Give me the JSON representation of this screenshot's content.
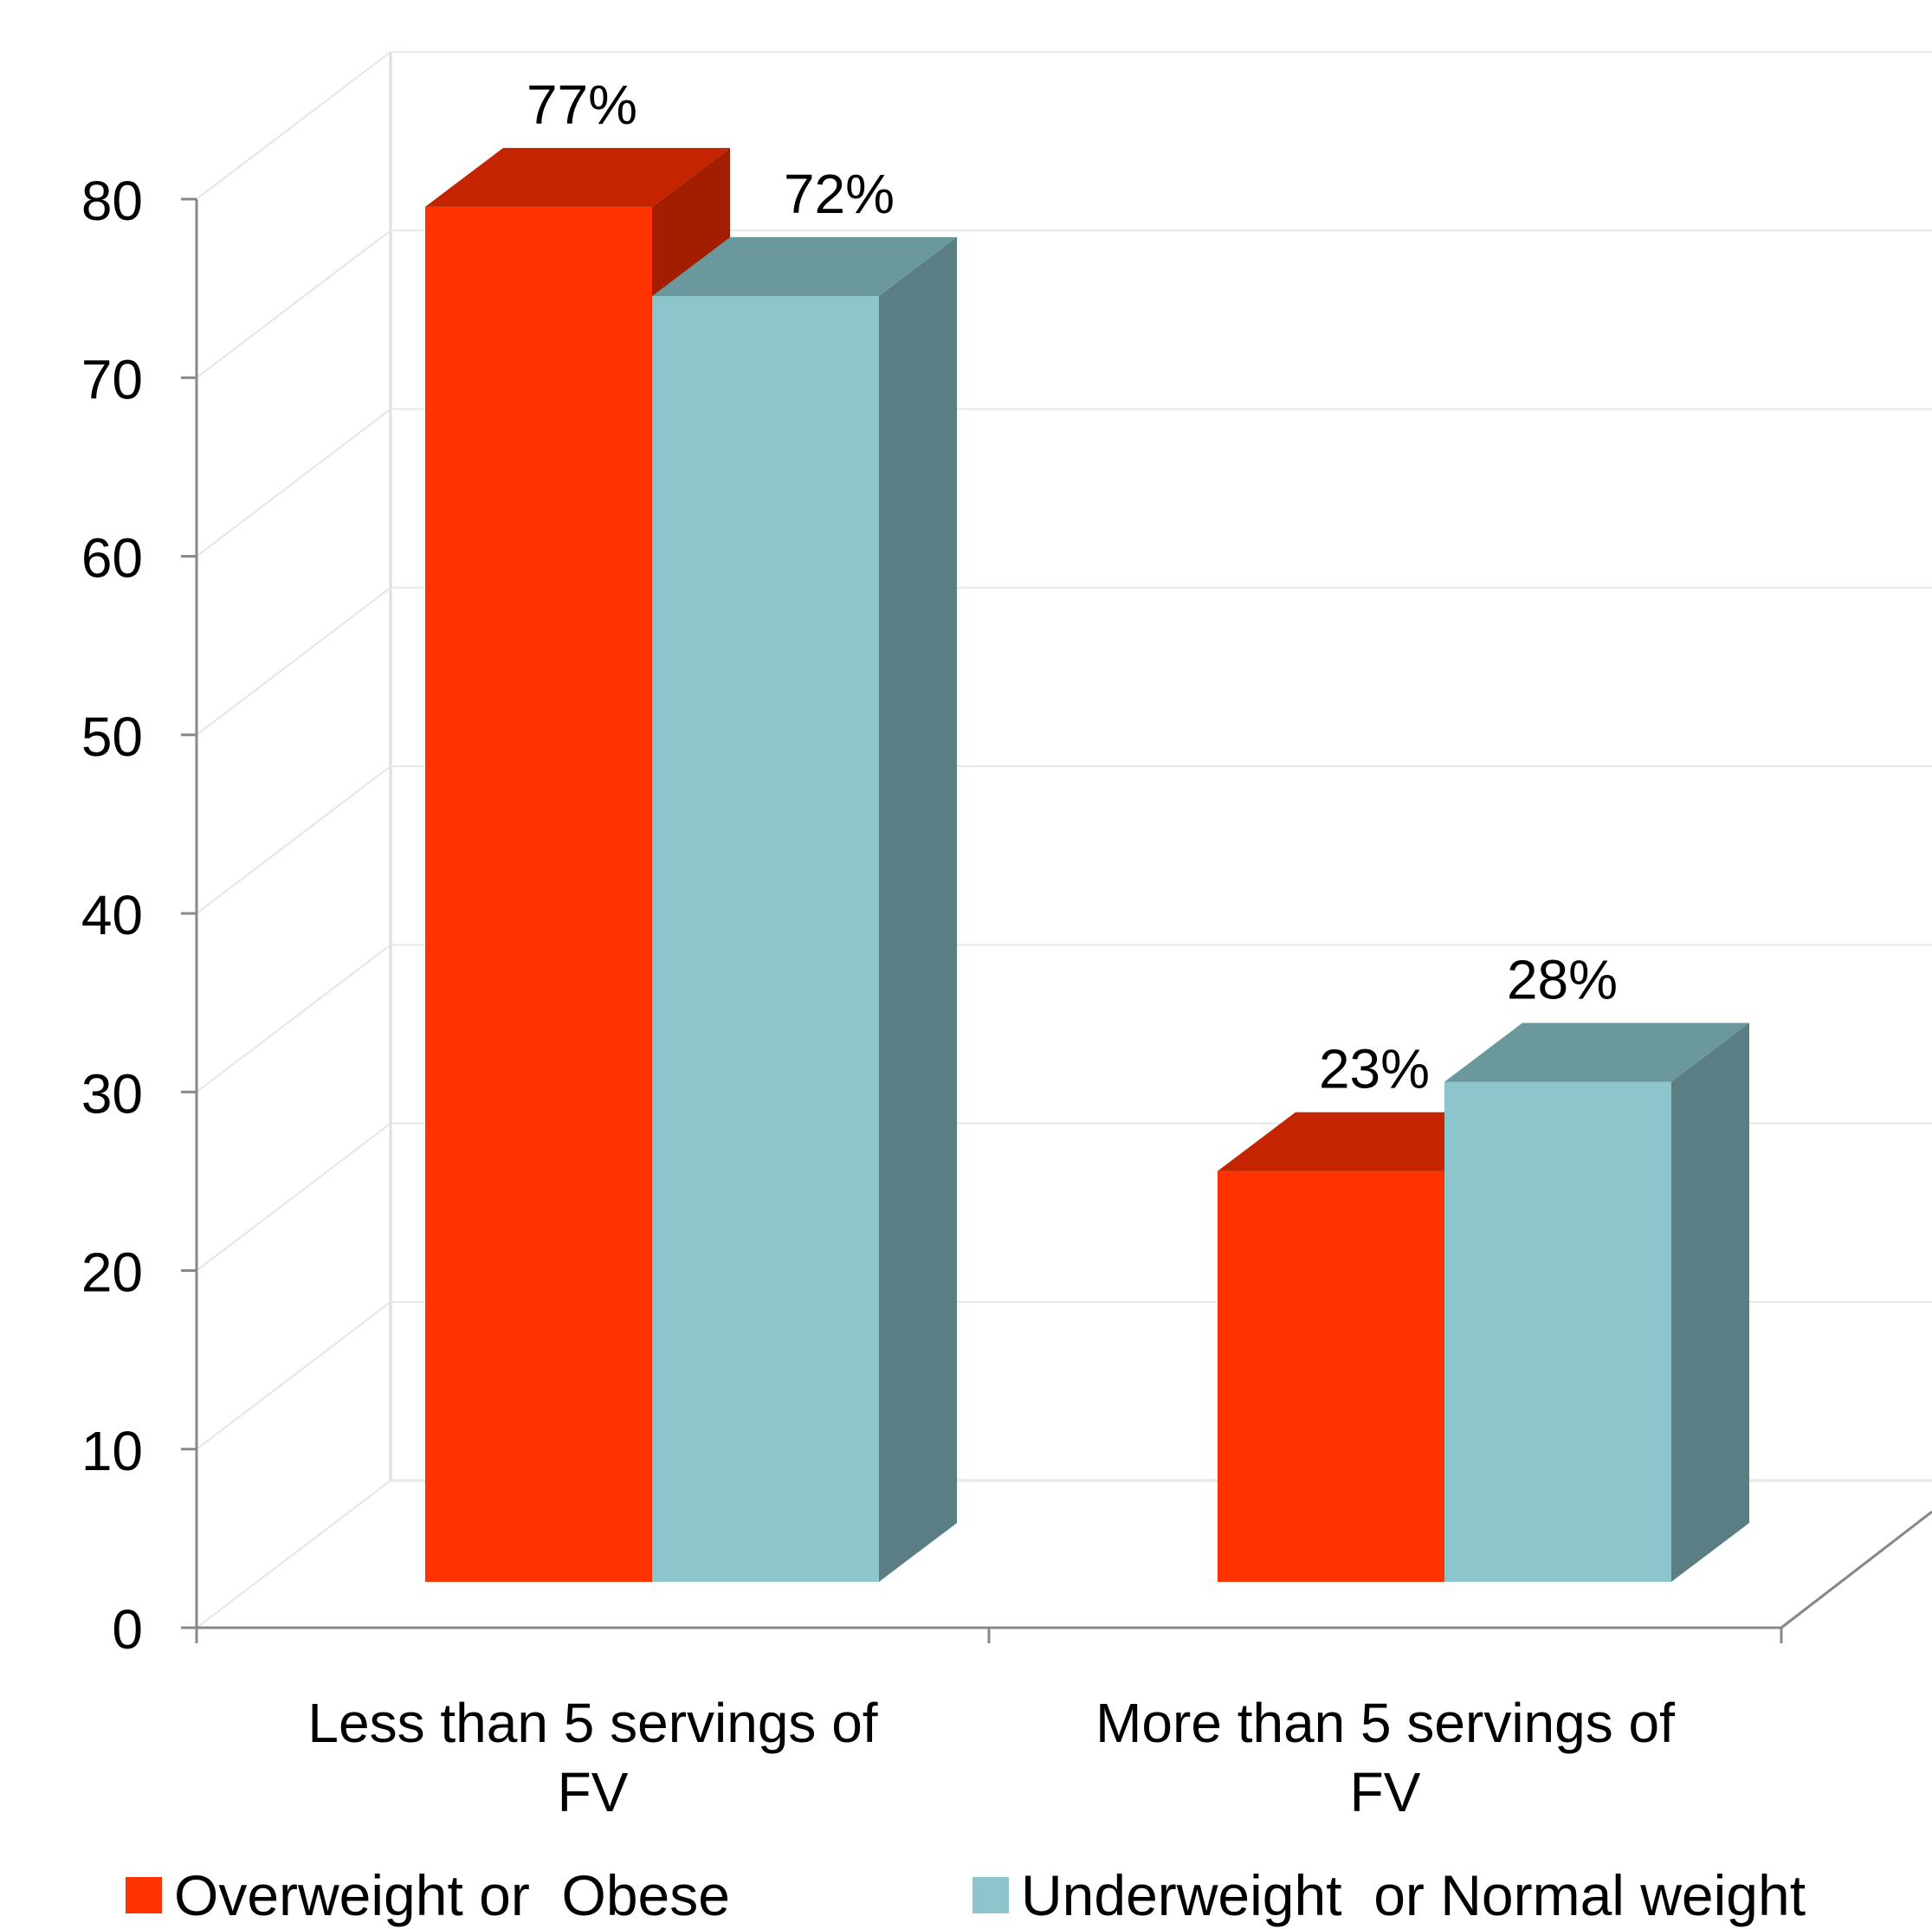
{
  "chart_data": {
    "type": "bar",
    "title": "",
    "xlabel": "",
    "ylabel": "",
    "ylim": [
      0,
      80
    ],
    "yticks": [
      0,
      10,
      20,
      30,
      40,
      50,
      60,
      70,
      80
    ],
    "categories": [
      [
        "Less than 5 servings of",
        "FV"
      ],
      [
        "More than 5 servings of",
        "FV"
      ]
    ],
    "series": [
      {
        "name": "Overweight or  Obese",
        "values": [
          77,
          23
        ],
        "labels": [
          "77%",
          "23%"
        ],
        "color": "#ff3300",
        "top_color": "#c42400",
        "side_color": "#a31e00"
      },
      {
        "name": "Underweight  or Normal weight",
        "values": [
          72,
          28
        ],
        "labels": [
          "72%",
          "28%"
        ],
        "color": "#8dc5cd",
        "top_color": "#6b989c",
        "side_color": "#5a7e83"
      }
    ],
    "grid": true,
    "legend_position": "bottom",
    "style": "3d-clustered-column"
  }
}
